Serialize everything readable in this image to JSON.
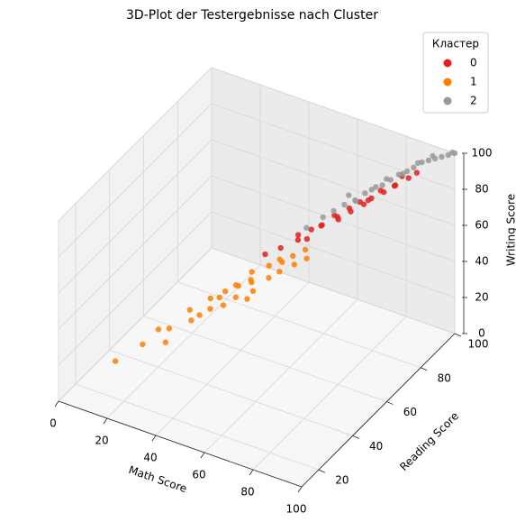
{
  "chart_data": {
    "type": "scatter",
    "title": "3D-Plot der Testergebnisse nach Cluster",
    "xlabel": "Math Score",
    "ylabel": "Reading Score",
    "zlabel": "Writing Score",
    "xlim": [
      0,
      100
    ],
    "ylim": [
      10,
      100
    ],
    "zlim": [
      0,
      100
    ],
    "xticks": [
      0,
      20,
      40,
      60,
      80,
      100
    ],
    "yticks": [
      20,
      40,
      60,
      80,
      100
    ],
    "zticks": [
      0,
      20,
      40,
      60,
      80,
      100
    ],
    "grid": true,
    "legend_title": "Кластер",
    "legend": "upper right",
    "series": [
      {
        "name": "0",
        "color": "#e0201c",
        "x": [
          50,
          55,
          58,
          60,
          62,
          65,
          66,
          68,
          70,
          72,
          74,
          75,
          77,
          78,
          80,
          82,
          84,
          85,
          88,
          90,
          63,
          71,
          79,
          86
        ],
        "y": [
          60,
          62,
          68,
          65,
          70,
          72,
          70,
          75,
          74,
          78,
          76,
          80,
          82,
          78,
          85,
          84,
          88,
          86,
          90,
          92,
          66,
          73,
          81,
          89
        ],
        "z": [
          58,
          62,
          65,
          66,
          68,
          70,
          72,
          74,
          75,
          77,
          78,
          80,
          80,
          82,
          84,
          85,
          86,
          88,
          90,
          92,
          67,
          75,
          83,
          91
        ]
      },
      {
        "name": "1",
        "color": "#ff7f00",
        "x": [
          15,
          22,
          28,
          30,
          33,
          35,
          38,
          40,
          42,
          44,
          45,
          47,
          48,
          50,
          52,
          53,
          55,
          56,
          58,
          60,
          62,
          63,
          65,
          25,
          37,
          46,
          51,
          57,
          41,
          49
        ],
        "y": [
          22,
          28,
          35,
          30,
          40,
          38,
          45,
          42,
          48,
          44,
          50,
          47,
          55,
          52,
          50,
          58,
          55,
          60,
          57,
          62,
          60,
          65,
          63,
          33,
          40,
          50,
          48,
          60,
          46,
          53
        ],
        "z": [
          18,
          25,
          30,
          28,
          38,
          35,
          42,
          40,
          45,
          42,
          48,
          45,
          52,
          50,
          48,
          55,
          52,
          58,
          55,
          60,
          58,
          62,
          60,
          30,
          37,
          48,
          45,
          57,
          43,
          50
        ]
      },
      {
        "name": "2",
        "color": "#999999",
        "x": [
          60,
          64,
          67,
          70,
          73,
          75,
          78,
          80,
          82,
          84,
          86,
          88,
          90,
          92,
          94,
          96,
          98,
          100,
          69,
          77,
          85,
          93,
          99,
          74,
          81,
          89
        ],
        "y": [
          70,
          74,
          76,
          78,
          80,
          83,
          85,
          86,
          88,
          90,
          92,
          93,
          95,
          96,
          97,
          98,
          99,
          100,
          82,
          84,
          91,
          97,
          100,
          79,
          87,
          94
        ],
        "z": [
          68,
          72,
          75,
          78,
          80,
          82,
          85,
          86,
          88,
          90,
          91,
          93,
          95,
          96,
          97,
          98,
          99,
          100,
          79,
          84,
          90,
          98,
          100,
          81,
          89,
          95
        ]
      }
    ]
  }
}
